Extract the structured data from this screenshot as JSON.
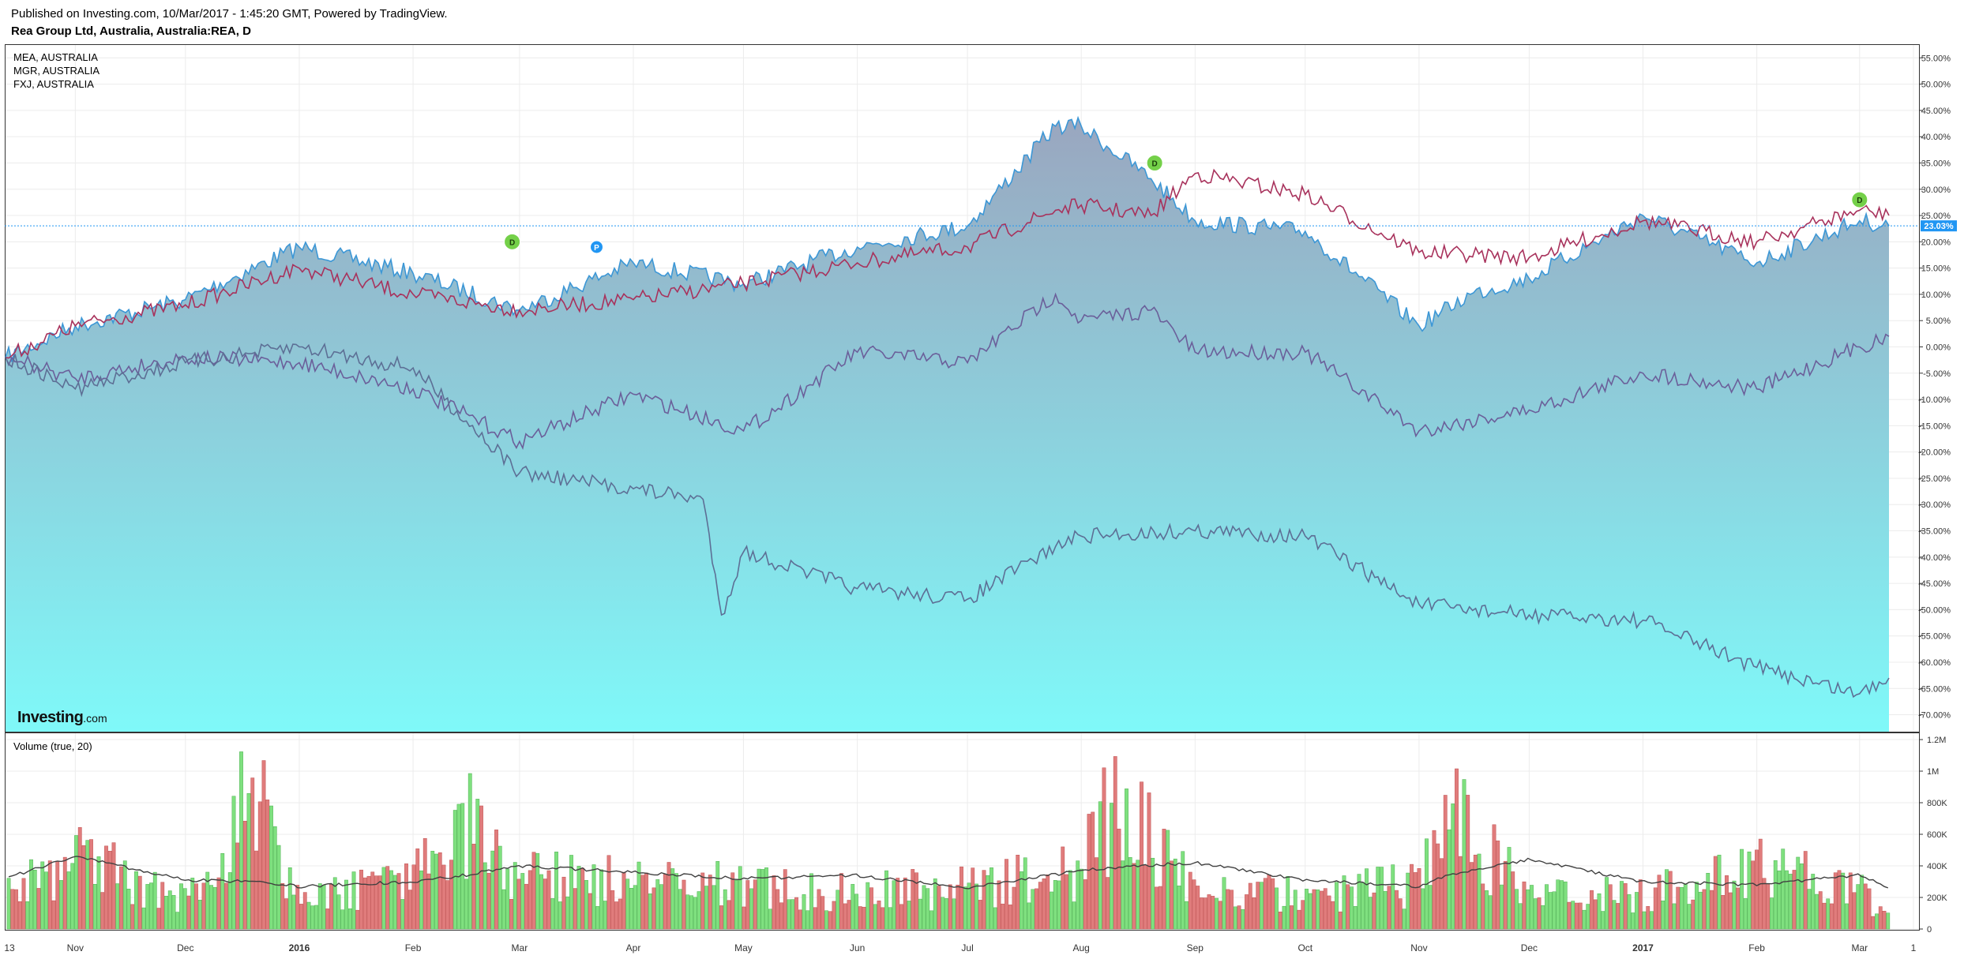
{
  "header": {
    "published": "Published on Investing.com, 10/Mar/2017 - 1:45:20 GMT, Powered by TradingView.",
    "symbol": "Rea Group Ltd, Australia, Australia:REA, D"
  },
  "legend": [
    "MEA, AUSTRALIA",
    "MGR, AUSTRALIA",
    "FXJ, AUSTRALIA"
  ],
  "logo": {
    "main": "Investing",
    "suffix": ".com"
  },
  "current_value_label": "23.03%",
  "volume_title": "Volume (true, 20)",
  "colors": {
    "area_top": "#9aa6bf",
    "area_bottom": "#7ff9f9",
    "area_line": "#3c97d6",
    "red_line": "#a8325c",
    "purple_line": "#6b5f9a",
    "slate_line": "#5d6f95",
    "vol_up": "#7fe07f",
    "vol_down": "#e07c7c",
    "vol_ma": "#404040",
    "badge_green": "#74d049",
    "badge_blue": "#2196f3",
    "current_tag": "#2196f3"
  },
  "chart_data": [
    {
      "type": "area",
      "title": "Rea Group Ltd, Australia, Australia:REA, D",
      "yunit": "%",
      "ylim": [
        -72,
        57
      ],
      "y_ticks": [
        "55.00%",
        "50.00%",
        "45.00%",
        "40.00%",
        "35.00%",
        "30.00%",
        "25.00%",
        "20.00%",
        "15.00%",
        "10.00%",
        "5.00%",
        "0.00%",
        "-5.00%",
        "-10.00%",
        "-15.00%",
        "-20.00%",
        "-25.00%",
        "-30.00%",
        "-35.00%",
        "-40.00%",
        "-45.00%",
        "-50.00%",
        "-55.00%",
        "-60.00%",
        "-65.00%",
        "-70.00%"
      ],
      "x_ticks": [
        "13",
        "Nov",
        "Dec",
        "2016",
        "Feb",
        "Mar",
        "Apr",
        "May",
        "Jun",
        "Jul",
        "Aug",
        "Sep",
        "Oct",
        "Nov",
        "Dec",
        "2017",
        "Feb",
        "Mar",
        "1"
      ],
      "grid": true,
      "series": [
        {
          "name": "Rea Group Ltd, Australia, Australia:REA, D",
          "style": "area",
          "x": [
            "2015-10-13",
            "2015-11-01",
            "2015-12-01",
            "2016-01-01",
            "2016-02-01",
            "2016-03-01",
            "2016-04-01",
            "2016-05-01",
            "2016-06-01",
            "2016-07-01",
            "2016-07-25",
            "2016-08-01",
            "2016-08-20",
            "2016-09-01",
            "2016-10-01",
            "2016-11-01",
            "2016-11-15",
            "2016-12-01",
            "2017-01-01",
            "2017-02-01",
            "2017-03-01",
            "2017-03-09"
          ],
          "values": [
            -2,
            4,
            9,
            19,
            14,
            7,
            16,
            12,
            19,
            23,
            42,
            42,
            32,
            24,
            22,
            4,
            10,
            13,
            25,
            16,
            24,
            23.03
          ]
        },
        {
          "name": "MEA, AUSTRALIA",
          "style": "line",
          "x": [
            "2015-10-13",
            "2015-11-01",
            "2015-12-01",
            "2016-01-01",
            "2016-02-01",
            "2016-03-01",
            "2016-04-01",
            "2016-05-01",
            "2016-06-01",
            "2016-07-01",
            "2016-07-25",
            "2016-08-01",
            "2016-08-20",
            "2016-09-01",
            "2016-10-01",
            "2016-11-01",
            "2016-12-01",
            "2017-01-01",
            "2017-02-01",
            "2017-03-01",
            "2017-03-09"
          ],
          "values": [
            -2,
            4,
            8,
            15,
            10,
            7,
            9,
            12,
            16,
            19,
            26,
            27,
            25,
            33,
            29,
            18,
            17,
            24,
            20,
            26,
            25
          ]
        },
        {
          "name": "MGR, AUSTRALIA",
          "style": "line",
          "x": [
            "2015-10-13",
            "2015-11-01",
            "2015-12-01",
            "2016-01-01",
            "2016-02-01",
            "2016-03-01",
            "2016-04-01",
            "2016-05-01",
            "2016-06-01",
            "2016-07-01",
            "2016-07-25",
            "2016-08-01",
            "2016-08-20",
            "2016-09-01",
            "2016-10-01",
            "2016-11-01",
            "2016-12-01",
            "2017-01-01",
            "2017-02-01",
            "2017-03-01",
            "2017-03-09"
          ],
          "values": [
            -2,
            -6,
            -2,
            -3,
            -8,
            -18,
            -9,
            -16,
            -1,
            -3,
            10,
            5,
            7,
            -1,
            -1,
            -16,
            -12,
            -5,
            -8,
            0,
            2
          ]
        },
        {
          "name": "FXJ, AUSTRALIA",
          "style": "line",
          "x": [
            "2015-10-13",
            "2015-11-01",
            "2015-12-01",
            "2016-01-01",
            "2016-02-01",
            "2016-03-01",
            "2016-04-01",
            "2016-04-20",
            "2016-04-25",
            "2016-05-01",
            "2016-06-01",
            "2016-07-01",
            "2016-07-25",
            "2016-08-01",
            "2016-09-01",
            "2016-10-01",
            "2016-11-01",
            "2016-12-01",
            "2017-01-01",
            "2017-02-01",
            "2017-03-01",
            "2017-03-09"
          ],
          "values": [
            -2,
            -8,
            -3,
            0,
            -4,
            -24,
            -27,
            -29,
            -51,
            -39,
            -46,
            -48,
            -38,
            -36,
            -35,
            -36,
            -49,
            -51,
            -52,
            -61,
            -66,
            -63
          ]
        }
      ],
      "annotations": [
        {
          "label": "D",
          "date": "2016-02-28",
          "value": 20
        },
        {
          "label": "P",
          "date": "2016-03-22",
          "value": 19
        },
        {
          "label": "D",
          "date": "2016-08-21",
          "value": 35
        },
        {
          "label": "D",
          "date": "2017-03-01",
          "value": 28
        }
      ]
    },
    {
      "type": "bar",
      "title": "Volume (true, 20)",
      "ylim": [
        0,
        1250000
      ],
      "y_ticks": [
        "1.2M",
        "1M",
        "800K",
        "600K",
        "400K",
        "200K",
        "0"
      ],
      "x": [
        "2015-10-13",
        "2015-11-01",
        "2015-12-01",
        "2015-12-20",
        "2016-01-01",
        "2016-02-01",
        "2016-02-15",
        "2016-03-01",
        "2016-04-01",
        "2016-05-01",
        "2016-06-01",
        "2016-07-01",
        "2016-08-01",
        "2016-08-10",
        "2016-09-01",
        "2016-10-01",
        "2016-11-01",
        "2016-11-10",
        "2016-12-01",
        "2017-01-01",
        "2017-02-01",
        "2017-03-01",
        "2017-03-09"
      ],
      "values": [
        300000,
        550000,
        280000,
        1100000,
        230000,
        380000,
        880000,
        420000,
        380000,
        350000,
        300000,
        330000,
        480000,
        1020000,
        320000,
        270000,
        360000,
        880000,
        300000,
        260000,
        520000,
        300000,
        120000
      ],
      "ma_values": [
        320000,
        460000,
        310000,
        300000,
        270000,
        300000,
        340000,
        400000,
        360000,
        320000,
        340000,
        260000,
        370000,
        390000,
        420000,
        310000,
        270000,
        350000,
        440000,
        300000,
        280000,
        340000,
        260000
      ]
    }
  ]
}
